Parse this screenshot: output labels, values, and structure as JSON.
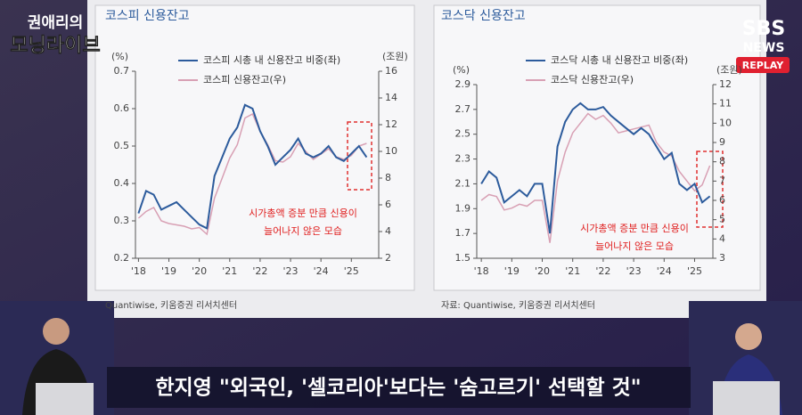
{
  "chart_data": [
    {
      "type": "line",
      "title": "코스피 신용잔고",
      "y_label": "(%)",
      "y2_label": "(조원)",
      "x": [
        18,
        18.25,
        18.5,
        18.75,
        19,
        19.25,
        19.5,
        19.75,
        20,
        20.25,
        20.5,
        20.75,
        21,
        21.25,
        21.5,
        21.75,
        22,
        22.25,
        22.5,
        22.75,
        23,
        23.25,
        23.5,
        23.75,
        24,
        24.25,
        24.5,
        24.75,
        25,
        25.25,
        25.5
      ],
      "xlim": [
        17.9,
        25.9
      ],
      "xticks": [
        {
          "value": 18,
          "label": "'18"
        },
        {
          "value": 19,
          "label": "'19"
        },
        {
          "value": 20,
          "label": "'20"
        },
        {
          "value": 21,
          "label": "'21"
        },
        {
          "value": 22,
          "label": "'22"
        },
        {
          "value": 23,
          "label": "'23"
        },
        {
          "value": 24,
          "label": "'24"
        },
        {
          "value": 25,
          "label": "'25"
        }
      ],
      "ylim": [
        0.2,
        0.7
      ],
      "yticks": [
        0.2,
        0.3,
        0.4,
        0.5,
        0.6,
        0.7
      ],
      "y2lim": [
        2,
        16
      ],
      "y2ticks": [
        2,
        4,
        6,
        8,
        10,
        12,
        14,
        16
      ],
      "series": [
        {
          "name": "코스피 시총 내 신용잔고 비중(좌)",
          "color": "#2c5b9c",
          "values": [
            0.32,
            0.38,
            0.37,
            0.33,
            0.34,
            0.35,
            0.33,
            0.31,
            0.29,
            0.28,
            0.42,
            0.47,
            0.52,
            0.55,
            0.61,
            0.6,
            0.54,
            0.5,
            0.45,
            0.47,
            0.49,
            0.52,
            0.48,
            0.47,
            0.48,
            0.5,
            0.47,
            0.46,
            0.48,
            0.5,
            0.47
          ]
        },
        {
          "name": "코스피 신용잔고(우)",
          "color": "#d8a0b4",
          "axis": "y2",
          "values": [
            5.0,
            5.5,
            5.8,
            4.8,
            4.6,
            4.5,
            4.4,
            4.2,
            4.3,
            3.8,
            6.5,
            8.0,
            9.5,
            10.5,
            12.5,
            12.8,
            11.5,
            10.5,
            9.3,
            9.2,
            9.6,
            10.6,
            10.0,
            9.4,
            9.8,
            10.2,
            9.6,
            9.4,
            9.7,
            10.4,
            10.6
          ]
        }
      ],
      "annotation": [
        "시가총액 증분 만큼 신용이",
        "늘어나지 않은 모습"
      ],
      "source": "Quantiwise, 키움증권 리서치센터"
    },
    {
      "type": "line",
      "title": "코스닥 신용잔고",
      "y_label": "(%)",
      "y2_label": "(조원)",
      "x": [
        18,
        18.25,
        18.5,
        18.75,
        19,
        19.25,
        19.5,
        19.75,
        20,
        20.25,
        20.5,
        20.75,
        21,
        21.25,
        21.5,
        21.75,
        22,
        22.25,
        22.5,
        22.75,
        23,
        23.25,
        23.5,
        23.75,
        24,
        24.25,
        24.5,
        24.75,
        25,
        25.25,
        25.5
      ],
      "xlim": [
        17.85,
        25.6
      ],
      "xticks": [
        {
          "value": 18,
          "label": "'18"
        },
        {
          "value": 19,
          "label": "'19"
        },
        {
          "value": 20,
          "label": "'20"
        },
        {
          "value": 21,
          "label": "'21"
        },
        {
          "value": 22,
          "label": "'22"
        },
        {
          "value": 23,
          "label": "'23"
        },
        {
          "value": 24,
          "label": "'24"
        },
        {
          "value": 25,
          "label": "'25"
        }
      ],
      "ylim": [
        1.5,
        2.9
      ],
      "yticks": [
        1.5,
        1.7,
        1.9,
        2.1,
        2.3,
        2.5,
        2.7,
        2.9
      ],
      "y2lim": [
        3,
        12
      ],
      "y2ticks": [
        3,
        4,
        5,
        6,
        7,
        8,
        9,
        10,
        11,
        12
      ],
      "series": [
        {
          "name": "코스닥 시총 내 신용잔고 비중(좌)",
          "color": "#2c5b9c",
          "values": [
            2.1,
            2.2,
            2.15,
            1.95,
            2.0,
            2.05,
            2.0,
            2.1,
            2.1,
            1.7,
            2.4,
            2.6,
            2.7,
            2.75,
            2.7,
            2.7,
            2.72,
            2.65,
            2.6,
            2.55,
            2.5,
            2.55,
            2.5,
            2.4,
            2.3,
            2.35,
            2.1,
            2.05,
            2.1,
            1.95,
            2.0
          ]
        },
        {
          "name": "코스닥 신용잔고(우)",
          "color": "#d8a0b4",
          "axis": "y2",
          "values": [
            6.0,
            6.3,
            6.2,
            5.5,
            5.6,
            5.8,
            5.7,
            6.0,
            6.0,
            3.8,
            7.0,
            8.5,
            9.5,
            10.0,
            10.5,
            10.2,
            10.4,
            10.0,
            9.5,
            9.6,
            9.7,
            9.8,
            9.9,
            9.0,
            8.5,
            8.3,
            7.5,
            7.0,
            6.5,
            6.8,
            7.8
          ]
        }
      ],
      "annotation": [
        "시가총액 증분 만큼 신용이",
        "늘어나지 않은 모습"
      ],
      "source": "자료: Quantiwise, 키움증권 리서치센터"
    }
  ],
  "broadcast": {
    "logo": [
      "권애리의",
      "모닝라이브"
    ],
    "channel": [
      "SBS",
      "NEWS"
    ],
    "replay": "REPLAY",
    "caption": "한지영 \"외국인, '셀코리아'보다는 '숨고르기' 선택할 것\""
  }
}
